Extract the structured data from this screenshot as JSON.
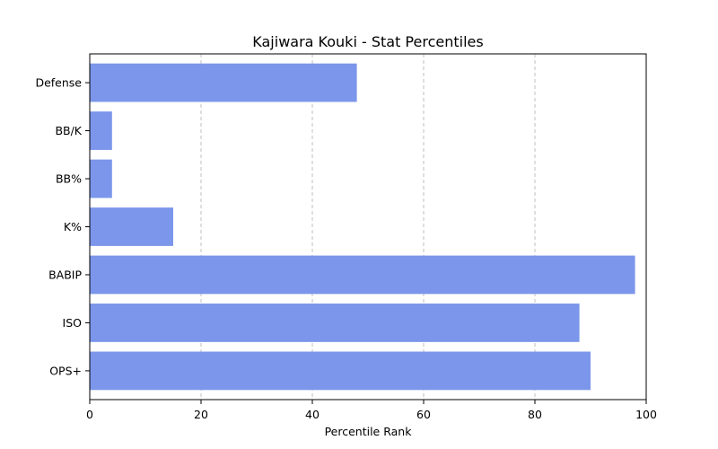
{
  "chart_data": {
    "type": "bar",
    "orientation": "horizontal",
    "title": "Kajiwara Kouki - Stat Percentiles",
    "xlabel": "Percentile Rank",
    "ylabel": "",
    "xlim": [
      0,
      100
    ],
    "xticks": [
      0,
      20,
      40,
      60,
      80,
      100
    ],
    "grid": "x-dashed",
    "bar_color": "#7b96ea",
    "categories": [
      "OPS+",
      "ISO",
      "BABIP",
      "K%",
      "BB%",
      "BB/K",
      "Defense"
    ],
    "values": [
      90,
      88,
      98,
      15,
      4,
      4,
      48
    ]
  }
}
